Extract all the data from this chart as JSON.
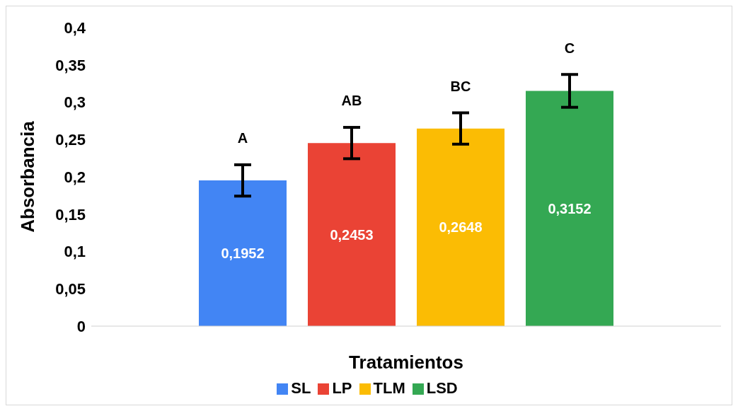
{
  "chart_data": {
    "type": "bar",
    "xlabel": "Tratamientos",
    "ylabel": "Absorbancia",
    "categories": [
      null
    ],
    "series": [
      {
        "name": "SL",
        "color": "#4285f4",
        "values": [
          0.1952
        ],
        "value_labels": [
          "0,1952"
        ],
        "errors": [
          0.021
        ]
      },
      {
        "name": "LP",
        "color": "#ea4335",
        "values": [
          0.2453
        ],
        "value_labels": [
          "0,2453"
        ],
        "errors": [
          0.021
        ]
      },
      {
        "name": "TLM",
        "color": "#fbbc04",
        "values": [
          0.2648
        ],
        "value_labels": [
          "0,2648"
        ],
        "errors": [
          0.021
        ]
      },
      {
        "name": "LSD",
        "color": "#34a853",
        "values": [
          0.3152
        ],
        "value_labels": [
          "0,3152"
        ],
        "errors": [
          0.022
        ]
      }
    ],
    "ylim": [
      0,
      0.4
    ],
    "yticks": [
      0,
      {
        "value": 0.05,
        "label": "0,05"
      },
      {
        "value": 0.1,
        "label": "0,1"
      },
      {
        "value": 0.15,
        "label": "0,15"
      },
      {
        "value": 0.2,
        "label": "0,2"
      },
      {
        "value": 0.25,
        "label": "0,25"
      },
      {
        "value": 0.3,
        "label": "0,3"
      },
      {
        "value": 0.35,
        "label": "0,35"
      },
      {
        "value": 0.4,
        "label": "0,4"
      }
    ],
    "legend": "bottom",
    "annotations": [
      "A",
      "AB",
      "BC",
      "C"
    ]
  }
}
